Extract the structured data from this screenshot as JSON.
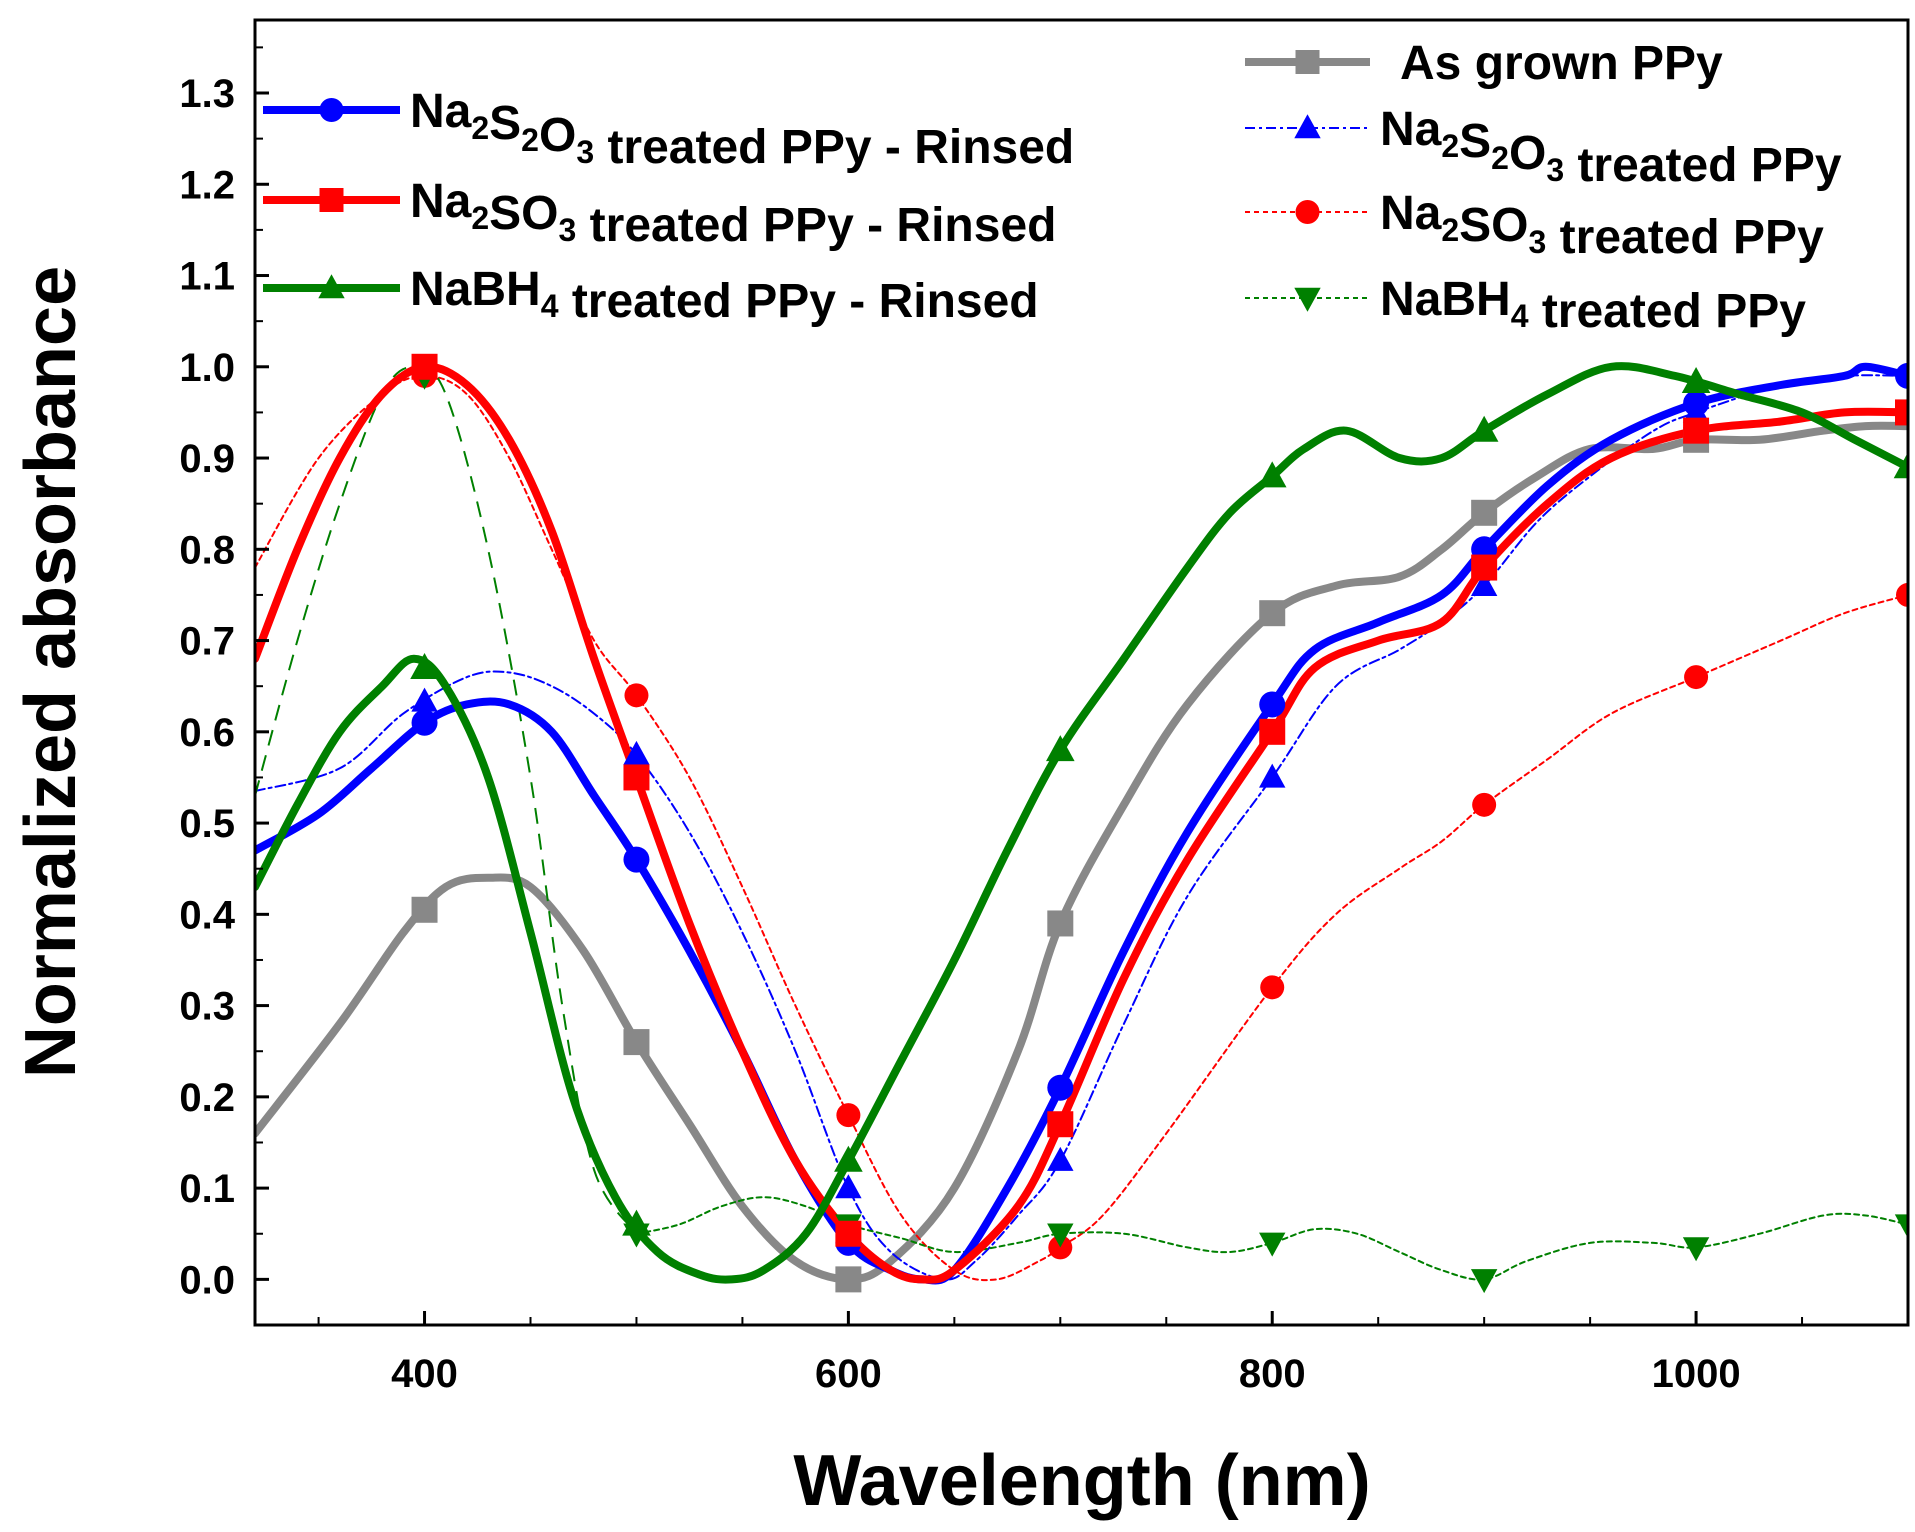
{
  "chart_data": {
    "type": "line",
    "xlabel": "Wavelength (nm)",
    "ylabel": "Normalized absorbance",
    "xlim": [
      320,
      1100
    ],
    "ylim": [
      -0.05,
      1.38
    ],
    "xticks": [
      400,
      600,
      800,
      1000
    ],
    "xtick_labels": [
      "400",
      "600",
      "800",
      "1000"
    ],
    "yticks": [
      0.0,
      0.1,
      0.2,
      0.3,
      0.4,
      0.5,
      0.6,
      0.7,
      0.8,
      0.9,
      1.0,
      1.1,
      1.2,
      1.3
    ],
    "ytick_labels": [
      "0.0",
      "0.1",
      "0.2",
      "0.3",
      "0.4",
      "0.5",
      "0.6",
      "0.7",
      "0.8",
      "0.9",
      "1.0",
      "1.1",
      "1.2",
      "1.3"
    ],
    "series": [
      {
        "name": "As grown PPy",
        "legend": {
          "main": "As grown PPy",
          "parts": []
        },
        "color": "#888888",
        "style": "solid",
        "thick": true,
        "marker": "square",
        "points": [
          [
            320,
            0.16
          ],
          [
            360,
            0.28
          ],
          [
            390,
            0.38
          ],
          [
            410,
            0.43
          ],
          [
            430,
            0.44
          ],
          [
            450,
            0.43
          ],
          [
            475,
            0.36
          ],
          [
            500,
            0.26
          ],
          [
            525,
            0.17
          ],
          [
            550,
            0.08
          ],
          [
            575,
            0.02
          ],
          [
            600,
            0.0
          ],
          [
            620,
            0.02
          ],
          [
            650,
            0.1
          ],
          [
            680,
            0.25
          ],
          [
            700,
            0.39
          ],
          [
            730,
            0.52
          ],
          [
            760,
            0.63
          ],
          [
            800,
            0.73
          ],
          [
            830,
            0.76
          ],
          [
            860,
            0.77
          ],
          [
            880,
            0.8
          ],
          [
            900,
            0.84
          ],
          [
            925,
            0.88
          ],
          [
            950,
            0.91
          ],
          [
            980,
            0.91
          ],
          [
            1000,
            0.92
          ],
          [
            1030,
            0.92
          ],
          [
            1060,
            0.93
          ],
          [
            1080,
            0.935
          ],
          [
            1100,
            0.935
          ]
        ],
        "markers_x": [
          400,
          500,
          600,
          700,
          800,
          900,
          1000
        ]
      },
      {
        "name": "Na2S2O3 treated PPy",
        "legend": {
          "main": "",
          "parts": [
            [
              "Na",
              ""
            ],
            [
              "2",
              "sub"
            ],
            [
              "S",
              ""
            ],
            [
              "2",
              "sub"
            ],
            [
              "O",
              ""
            ],
            [
              "3",
              "sub"
            ],
            [
              " treated PPy",
              ""
            ]
          ]
        },
        "color": "#0000ff",
        "style": "dashdot",
        "thick": false,
        "marker": "triangle",
        "points": [
          [
            320,
            0.535
          ],
          [
            360,
            0.56
          ],
          [
            390,
            0.62
          ],
          [
            420,
            0.66
          ],
          [
            440,
            0.665
          ],
          [
            460,
            0.65
          ],
          [
            480,
            0.62
          ],
          [
            500,
            0.575
          ],
          [
            525,
            0.49
          ],
          [
            550,
            0.38
          ],
          [
            575,
            0.25
          ],
          [
            600,
            0.1
          ],
          [
            620,
            0.03
          ],
          [
            645,
            0.0
          ],
          [
            660,
            0.02
          ],
          [
            680,
            0.07
          ],
          [
            700,
            0.13
          ],
          [
            730,
            0.28
          ],
          [
            760,
            0.42
          ],
          [
            800,
            0.55
          ],
          [
            830,
            0.65
          ],
          [
            860,
            0.69
          ],
          [
            880,
            0.72
          ],
          [
            900,
            0.76
          ],
          [
            925,
            0.83
          ],
          [
            950,
            0.88
          ],
          [
            980,
            0.93
          ],
          [
            1000,
            0.95
          ],
          [
            1040,
            0.98
          ],
          [
            1070,
            0.99
          ],
          [
            1100,
            0.99
          ]
        ],
        "markers_x": [
          400,
          500,
          600,
          700,
          800,
          900,
          1000
        ]
      },
      {
        "name": "Na2SO3 treated PPy",
        "legend": {
          "main": "",
          "parts": [
            [
              "Na",
              ""
            ],
            [
              "2",
              "sub"
            ],
            [
              "SO",
              ""
            ],
            [
              "3",
              "sub"
            ],
            [
              " treated PPy",
              ""
            ]
          ]
        },
        "color": "#ff0000",
        "style": "dotted",
        "thick": false,
        "marker": "circle",
        "points": [
          [
            320,
            0.78
          ],
          [
            350,
            0.9
          ],
          [
            380,
            0.97
          ],
          [
            400,
            0.99
          ],
          [
            420,
            0.97
          ],
          [
            440,
            0.9
          ],
          [
            460,
            0.8
          ],
          [
            480,
            0.7
          ],
          [
            500,
            0.64
          ],
          [
            525,
            0.55
          ],
          [
            550,
            0.43
          ],
          [
            575,
            0.3
          ],
          [
            600,
            0.18
          ],
          [
            625,
            0.07
          ],
          [
            650,
            0.01
          ],
          [
            670,
            0.0
          ],
          [
            690,
            0.02
          ],
          [
            700,
            0.035
          ],
          [
            720,
            0.07
          ],
          [
            750,
            0.16
          ],
          [
            800,
            0.32
          ],
          [
            830,
            0.4
          ],
          [
            860,
            0.45
          ],
          [
            880,
            0.48
          ],
          [
            900,
            0.52
          ],
          [
            930,
            0.57
          ],
          [
            960,
            0.62
          ],
          [
            1000,
            0.66
          ],
          [
            1040,
            0.7
          ],
          [
            1070,
            0.73
          ],
          [
            1100,
            0.75
          ]
        ],
        "markers_x": [
          400,
          500,
          600,
          700,
          800,
          900,
          1000,
          1100
        ]
      },
      {
        "name": "NaBH4 treated PPy",
        "legend": {
          "main": "",
          "parts": [
            [
              "NaBH",
              ""
            ],
            [
              "4",
              "sub"
            ],
            [
              " treated PPy",
              ""
            ]
          ]
        },
        "color": "#008000",
        "style": "dotted",
        "thick": false,
        "marker": "triangle-down",
        "dash_section": {
          "points": [
            [
              320,
              0.53
            ],
            [
              340,
              0.7
            ],
            [
              360,
              0.85
            ],
            [
              380,
              0.97
            ],
            [
              395,
              1.0
            ],
            [
              410,
              0.97
            ],
            [
              430,
              0.8
            ],
            [
              450,
              0.55
            ],
            [
              465,
              0.3
            ],
            [
              480,
              0.12
            ],
            [
              500,
              0.05
            ]
          ],
          "dash": "16,10"
        },
        "points": [
          [
            500,
            0.05
          ],
          [
            520,
            0.06
          ],
          [
            540,
            0.08
          ],
          [
            560,
            0.09
          ],
          [
            580,
            0.08
          ],
          [
            600,
            0.06
          ],
          [
            625,
            0.045
          ],
          [
            650,
            0.03
          ],
          [
            680,
            0.04
          ],
          [
            700,
            0.05
          ],
          [
            730,
            0.05
          ],
          [
            760,
            0.035
          ],
          [
            780,
            0.03
          ],
          [
            800,
            0.04
          ],
          [
            820,
            0.055
          ],
          [
            840,
            0.05
          ],
          [
            860,
            0.03
          ],
          [
            880,
            0.01
          ],
          [
            900,
            0.0
          ],
          [
            920,
            0.02
          ],
          [
            950,
            0.04
          ],
          [
            980,
            0.04
          ],
          [
            1000,
            0.035
          ],
          [
            1030,
            0.05
          ],
          [
            1060,
            0.07
          ],
          [
            1080,
            0.07
          ],
          [
            1100,
            0.06
          ]
        ],
        "markers_x": [
          400,
          500,
          600,
          700,
          800,
          900,
          1000,
          1100
        ]
      },
      {
        "name": "Na2S2O3 treated PPy - Rinsed",
        "legend": {
          "main": "",
          "parts": [
            [
              "Na",
              ""
            ],
            [
              "2",
              "sub"
            ],
            [
              "S",
              ""
            ],
            [
              "2",
              "sub"
            ],
            [
              "O",
              ""
            ],
            [
              "3",
              "sub"
            ],
            [
              " treated PPy - Rinsed",
              ""
            ]
          ]
        },
        "color": "#0000ff",
        "style": "solid",
        "thick": true,
        "marker": "circle",
        "points": [
          [
            320,
            0.47
          ],
          [
            350,
            0.51
          ],
          [
            375,
            0.56
          ],
          [
            400,
            0.61
          ],
          [
            420,
            0.63
          ],
          [
            440,
            0.63
          ],
          [
            460,
            0.6
          ],
          [
            480,
            0.53
          ],
          [
            500,
            0.46
          ],
          [
            525,
            0.36
          ],
          [
            550,
            0.25
          ],
          [
            575,
            0.13
          ],
          [
            600,
            0.04
          ],
          [
            620,
            0.01
          ],
          [
            635,
            0.0
          ],
          [
            650,
            0.01
          ],
          [
            675,
            0.1
          ],
          [
            700,
            0.21
          ],
          [
            730,
            0.36
          ],
          [
            760,
            0.49
          ],
          [
            800,
            0.63
          ],
          [
            820,
            0.69
          ],
          [
            850,
            0.72
          ],
          [
            880,
            0.75
          ],
          [
            900,
            0.8
          ],
          [
            930,
            0.87
          ],
          [
            960,
            0.92
          ],
          [
            1000,
            0.96
          ],
          [
            1040,
            0.98
          ],
          [
            1070,
            0.99
          ],
          [
            1080,
            1.0
          ],
          [
            1100,
            0.99
          ]
        ],
        "markers_x": [
          400,
          500,
          600,
          700,
          800,
          900,
          1000,
          1100
        ]
      },
      {
        "name": "Na2SO3 treated PPy - Rinsed",
        "legend": {
          "main": "",
          "parts": [
            [
              "Na",
              ""
            ],
            [
              "2",
              "sub"
            ],
            [
              "SO",
              ""
            ],
            [
              "3",
              "sub"
            ],
            [
              " treated PPy - Rinsed",
              ""
            ]
          ]
        },
        "color": "#ff0000",
        "style": "solid",
        "thick": true,
        "marker": "square",
        "points": [
          [
            320,
            0.68
          ],
          [
            340,
            0.8
          ],
          [
            360,
            0.9
          ],
          [
            380,
            0.97
          ],
          [
            400,
            1.0
          ],
          [
            420,
            0.98
          ],
          [
            440,
            0.92
          ],
          [
            460,
            0.82
          ],
          [
            480,
            0.68
          ],
          [
            500,
            0.55
          ],
          [
            525,
            0.39
          ],
          [
            550,
            0.25
          ],
          [
            575,
            0.13
          ],
          [
            600,
            0.05
          ],
          [
            620,
            0.01
          ],
          [
            635,
            0.0
          ],
          [
            650,
            0.01
          ],
          [
            680,
            0.08
          ],
          [
            700,
            0.17
          ],
          [
            730,
            0.33
          ],
          [
            760,
            0.46
          ],
          [
            800,
            0.6
          ],
          [
            820,
            0.67
          ],
          [
            850,
            0.7
          ],
          [
            880,
            0.72
          ],
          [
            900,
            0.78
          ],
          [
            930,
            0.85
          ],
          [
            960,
            0.9
          ],
          [
            1000,
            0.93
          ],
          [
            1040,
            0.94
          ],
          [
            1070,
            0.95
          ],
          [
            1100,
            0.95
          ]
        ],
        "markers_x": [
          400,
          500,
          600,
          700,
          800,
          900,
          1000,
          1100
        ]
      },
      {
        "name": "NaBH4 treated PPy - Rinsed",
        "legend": {
          "main": "",
          "parts": [
            [
              "NaBH",
              ""
            ],
            [
              "4",
              "sub"
            ],
            [
              " treated PPy - Rinsed",
              ""
            ]
          ]
        },
        "color": "#008000",
        "style": "solid",
        "thick": true,
        "marker": "triangle",
        "points": [
          [
            320,
            0.43
          ],
          [
            340,
            0.52
          ],
          [
            360,
            0.6
          ],
          [
            380,
            0.65
          ],
          [
            395,
            0.68
          ],
          [
            410,
            0.65
          ],
          [
            430,
            0.55
          ],
          [
            450,
            0.38
          ],
          [
            470,
            0.2
          ],
          [
            490,
            0.09
          ],
          [
            510,
            0.03
          ],
          [
            530,
            0.005
          ],
          [
            545,
            0.0
          ],
          [
            560,
            0.01
          ],
          [
            580,
            0.05
          ],
          [
            600,
            0.13
          ],
          [
            625,
            0.24
          ],
          [
            650,
            0.35
          ],
          [
            675,
            0.47
          ],
          [
            700,
            0.58
          ],
          [
            730,
            0.68
          ],
          [
            760,
            0.78
          ],
          [
            780,
            0.84
          ],
          [
            800,
            0.88
          ],
          [
            815,
            0.91
          ],
          [
            835,
            0.93
          ],
          [
            860,
            0.9
          ],
          [
            880,
            0.9
          ],
          [
            900,
            0.93
          ],
          [
            930,
            0.97
          ],
          [
            960,
            1.0
          ],
          [
            990,
            0.99
          ],
          [
            1020,
            0.97
          ],
          [
            1050,
            0.95
          ],
          [
            1075,
            0.92
          ],
          [
            1100,
            0.89
          ]
        ],
        "markers_x": [
          400,
          500,
          600,
          700,
          800,
          900,
          1000,
          1100
        ]
      }
    ]
  }
}
